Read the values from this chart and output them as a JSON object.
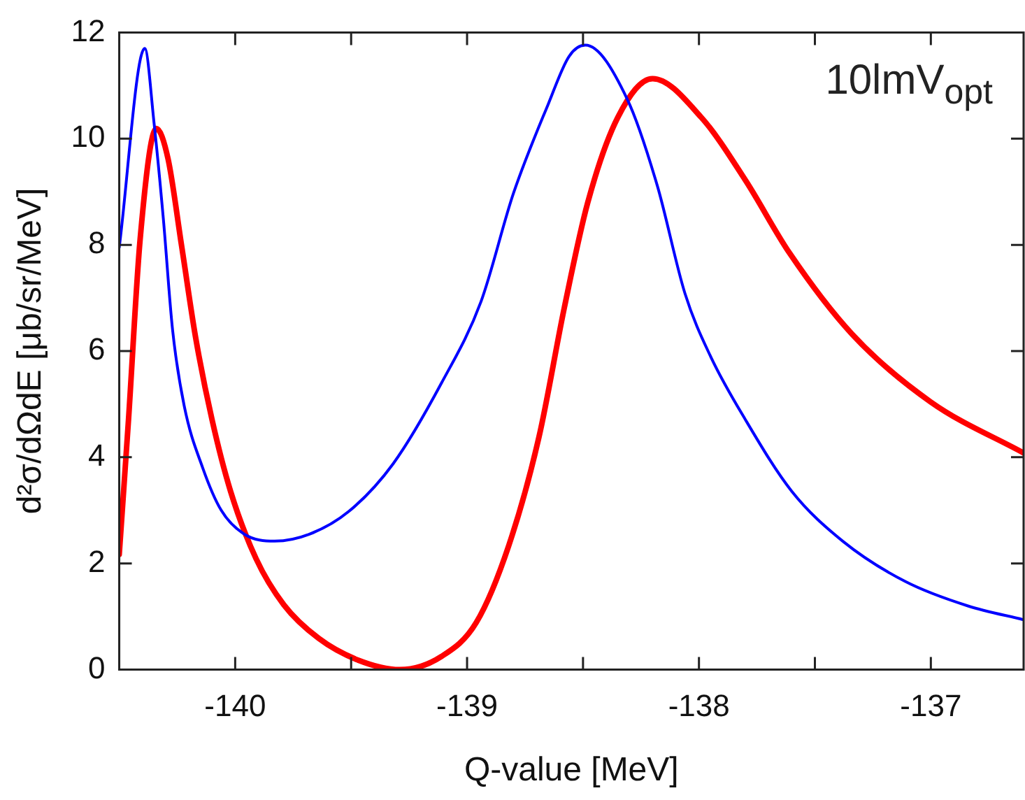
{
  "chart_data": {
    "type": "line",
    "xlabel": "Q-value [MeV]",
    "ylabel": "d²σ/dΩdE [μb/sr/MeV]",
    "annotations": [
      "10lmV$_{opt}$"
    ],
    "xlim": [
      -140.5,
      -136.6
    ],
    "ylim": [
      0,
      12
    ],
    "xticks": [
      -140,
      {
        "value": -139.5,
        "label": null
      },
      -139,
      {
        "value": -138.5,
        "label": null
      },
      -138,
      {
        "value": -137.5,
        "label": null
      },
      -137
    ],
    "yticks": [
      0,
      2,
      4,
      6,
      8,
      10,
      12
    ],
    "grid": false,
    "legend": false,
    "marker": "none",
    "line_style": "solid",
    "series": [
      {
        "color": "#0000ff",
        "x": [
          -140.5,
          -140.39,
          -140.35,
          -140.31,
          -140.27,
          -140.22,
          -140.14,
          -140.06,
          -139.96,
          -139.83,
          -139.68,
          -139.51,
          -139.32,
          -139.11,
          -138.94,
          -138.8,
          -138.65,
          -138.56,
          -138.49,
          -138.31,
          -138.18,
          -138.06,
          -137.95,
          -137.8,
          -137.6,
          -137.38,
          -137.11,
          -136.84,
          -136.6
        ],
        "values": [
          7.95,
          11.7,
          10.3,
          8.5,
          6.4,
          4.97,
          3.8,
          3.0,
          2.55,
          2.42,
          2.55,
          2.98,
          3.87,
          5.4,
          6.93,
          8.97,
          10.65,
          11.55,
          11.76,
          10.75,
          9.12,
          7.08,
          5.9,
          4.71,
          3.36,
          2.42,
          1.66,
          1.2,
          0.94
        ]
      },
      {
        "color": "#ff0000",
        "x": [
          -140.5,
          -140.46,
          -140.41,
          -140.34,
          -140.29,
          -140.23,
          -140.17,
          -140.1,
          -140.02,
          -139.91,
          -139.79,
          -139.64,
          -139.47,
          -139.29,
          -139.11,
          -138.96,
          -138.82,
          -138.69,
          -138.58,
          -138.48,
          -138.35,
          -138.2,
          -137.99,
          -137.8,
          -137.61,
          -137.34,
          -137.0,
          -136.6
        ],
        "values": [
          2.17,
          4.71,
          8.1,
          10.19,
          9.63,
          7.95,
          6.24,
          4.71,
          3.36,
          2.09,
          1.22,
          0.59,
          0.18,
          0,
          0.25,
          0.89,
          2.34,
          4.38,
          6.83,
          8.79,
          10.4,
          11.13,
          10.4,
          9.22,
          7.85,
          6.32,
          5.04,
          4.08
        ]
      }
    ]
  }
}
